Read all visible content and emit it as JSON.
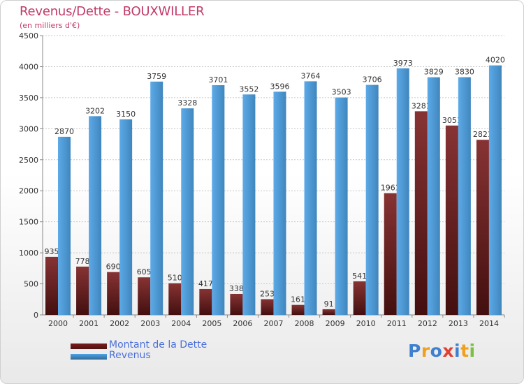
{
  "title": "Revenus/Dette - BOUXWILLER",
  "subtitle": "(en milliers d'€)",
  "chart_data": {
    "type": "bar",
    "categories": [
      "2000",
      "2001",
      "2002",
      "2003",
      "2004",
      "2005",
      "2006",
      "2007",
      "2008",
      "2009",
      "2010",
      "2011",
      "2012",
      "2013",
      "2014"
    ],
    "series": [
      {
        "name": "Montant de la Dette",
        "color": "#7a1c1c",
        "values": [
          935,
          778,
          690,
          605,
          510,
          417,
          338,
          253,
          161,
          91,
          541,
          1961,
          3281,
          3051,
          2821
        ],
        "labels": [
          "935",
          "778",
          "690",
          "605",
          "510",
          "417",
          "338",
          "253",
          "161",
          "91",
          "541",
          "1961",
          "3281",
          "3051",
          "2821"
        ]
      },
      {
        "name": "Revenus",
        "color": "#4ea3e6",
        "values": [
          2870,
          3202,
          3150,
          3759,
          3328,
          3701,
          3552,
          3596,
          3764,
          3503,
          3706,
          3973,
          3829,
          3830,
          4020
        ],
        "labels": [
          "2870",
          "3202",
          "3150",
          "3759",
          "3328",
          "3701",
          "3552",
          "3596",
          "3764",
          "3503",
          "3706",
          "3973",
          "3829",
          "3830",
          "4020"
        ]
      }
    ],
    "ylim": [
      0,
      4500
    ],
    "yticks": [
      "0",
      "500",
      "1000",
      "1500",
      "2000",
      "2500",
      "3000",
      "3500",
      "4000",
      "4500"
    ],
    "grid": true,
    "legend_position": "bottom-left"
  },
  "legend": [
    {
      "label": "Montant de la Dette",
      "color": "#7a1c1c"
    },
    {
      "label": "Revenus",
      "color": "#4ea3e6"
    }
  ],
  "logo": {
    "text": "Proxiti",
    "letters": [
      {
        "ch": "P",
        "color": "#3f7fd0"
      },
      {
        "ch": "r",
        "color": "#f0a020"
      },
      {
        "ch": "o",
        "color": "#3f7fd0"
      },
      {
        "ch": "x",
        "color": "#e04030"
      },
      {
        "ch": "i",
        "color": "#3f7fd0"
      },
      {
        "ch": "t",
        "color": "#f0a020"
      },
      {
        "ch": "i",
        "color": "#7cc040"
      }
    ]
  }
}
